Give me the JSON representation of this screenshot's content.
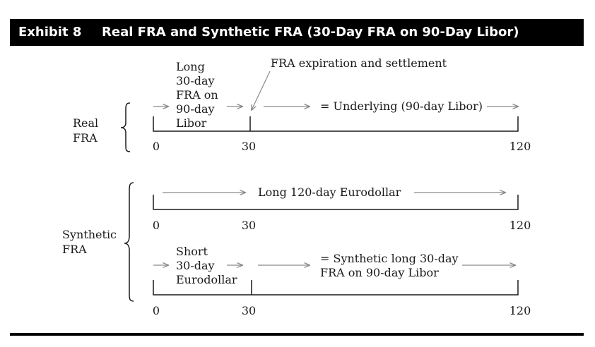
{
  "exhibit": {
    "number": "Exhibit 8",
    "title": "Real FRA and Synthetic FRA (30-Day FRA on 90-Day Libor)"
  },
  "real": {
    "group_label": [
      "Real",
      "FRA"
    ],
    "position_lines": [
      "Long",
      "30-day",
      "FRA on",
      "90-day",
      "Libor"
    ],
    "callout": "FRA expiration and settlement",
    "underlying": "= Underlying (90-day Libor)",
    "ticks": [
      "0",
      "30",
      "120"
    ]
  },
  "synthetic": {
    "group_label": [
      "Synthetic",
      "FRA"
    ],
    "eurodollar_long": "Long 120-day Eurodollar",
    "ticks_top": [
      "0",
      "30",
      "120"
    ],
    "short_lines": [
      "Short",
      "30-day",
      "Eurodollar"
    ],
    "result_lines": [
      "= Synthetic long 30-day",
      "FRA on 90-day Libor"
    ],
    "ticks_bottom": [
      "0",
      "30",
      "120"
    ]
  },
  "colors": {
    "header_bg": "#000000",
    "header_text": "#ffffff",
    "arrow": "#8a8a8a"
  }
}
